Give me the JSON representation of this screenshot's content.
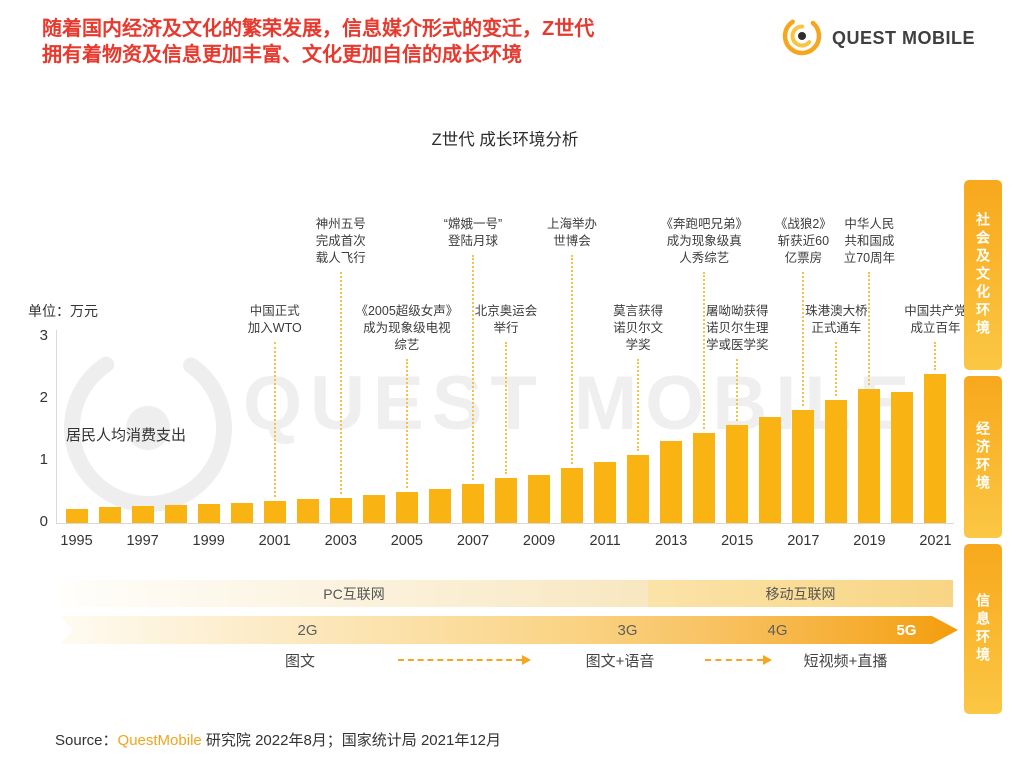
{
  "header": {
    "title_line1": "随着国内经济及文化的繁荣发展，信息媒介形式的变迁，Z世代",
    "title_line2": "拥有着物资及信息更加丰富、文化更加自信的成长环境",
    "brand": "QUEST MOBILE"
  },
  "chart_title": "Z世代 成长环境分析",
  "watermark": "QUEST MOBILE",
  "side_tabs": [
    {
      "label": "社会及文化环境"
    },
    {
      "label": "经济环境"
    },
    {
      "label": "信息环境"
    }
  ],
  "chart_data": {
    "type": "bar",
    "title": "Z世代 成长环境分析",
    "series_label": "居民人均消费支出",
    "unit_label": "单位：万元",
    "xlabel": "",
    "ylabel": "万元",
    "ylim": [
      0,
      3
    ],
    "yticks": [
      0,
      1,
      2,
      3
    ],
    "grid": false,
    "bar_color": "#F9B414",
    "categories": [
      1995,
      1996,
      1997,
      1998,
      1999,
      2000,
      2001,
      2002,
      2003,
      2004,
      2005,
      2006,
      2007,
      2008,
      2009,
      2010,
      2011,
      2012,
      2013,
      2014,
      2015,
      2016,
      2017,
      2018,
      2019,
      2020,
      2021
    ],
    "values": [
      0.22,
      0.25,
      0.27,
      0.29,
      0.31,
      0.33,
      0.35,
      0.38,
      0.4,
      0.45,
      0.5,
      0.55,
      0.63,
      0.72,
      0.78,
      0.88,
      0.99,
      1.1,
      1.32,
      1.45,
      1.58,
      1.71,
      1.83,
      1.99,
      2.16,
      2.12,
      2.41
    ],
    "xtick_labels": [
      "1995",
      "1997",
      "1999",
      "2001",
      "2003",
      "2005",
      "2007",
      "2009",
      "2011",
      "2013",
      "2015",
      "2017",
      "2019",
      "2021"
    ],
    "annotations": [
      {
        "year": 2001,
        "row": "bottom",
        "lines": [
          "中国正式",
          "加入WTO"
        ]
      },
      {
        "year": 2003,
        "row": "top",
        "lines": [
          "神州五号",
          "完成首次",
          "载人飞行"
        ]
      },
      {
        "year": 2005,
        "row": "bottom",
        "lines": [
          "《2005超级女声》",
          "成为现象级电视",
          "综艺"
        ]
      },
      {
        "year": 2007,
        "row": "top",
        "lines": [
          "“嫦娥一号”",
          "登陆月球"
        ]
      },
      {
        "year": 2008,
        "row": "bottom",
        "lines": [
          "北京奥运会",
          "举行"
        ]
      },
      {
        "year": 2010,
        "row": "top",
        "lines": [
          "上海举办",
          "世博会"
        ]
      },
      {
        "year": 2012,
        "row": "bottom",
        "lines": [
          "莫言获得",
          "诺贝尔文",
          "学奖"
        ]
      },
      {
        "year": 2014,
        "row": "top",
        "lines": [
          "《奔跑吧兄弟》",
          "成为现象级真",
          "人秀综艺"
        ]
      },
      {
        "year": 2015,
        "row": "bottom",
        "lines": [
          "屠呦呦获得",
          "诺贝尔生理",
          "学或医学奖"
        ]
      },
      {
        "year": 2017,
        "row": "top",
        "lines": [
          "《战狼2》",
          "斩获近60",
          "亿票房"
        ]
      },
      {
        "year": 2018,
        "row": "bottom",
        "lines": [
          "珠港澳大桥",
          "正式通车"
        ]
      },
      {
        "year": 2019,
        "row": "top",
        "lines": [
          "中华人民",
          "共和国成",
          "立70周年"
        ]
      },
      {
        "year": 2021,
        "row": "bottom",
        "lines": [
          "中国共产党",
          "成立百年"
        ]
      }
    ]
  },
  "timeline": {
    "internet_bands": [
      {
        "label": "PC互联网"
      },
      {
        "label": "移动互联网"
      }
    ],
    "tech_bands": [
      {
        "label": "2G"
      },
      {
        "label": "3G"
      },
      {
        "label": "4G"
      },
      {
        "label": "5G"
      }
    ],
    "media_labels": [
      {
        "label": "图文"
      },
      {
        "label": "图文+语音"
      },
      {
        "label": "短视频+直播"
      }
    ]
  },
  "source": {
    "prefix": "Source：",
    "brand": "QuestMobile",
    "suffix": " 研究院 2022年8月；国家统计局 2021年12月"
  }
}
